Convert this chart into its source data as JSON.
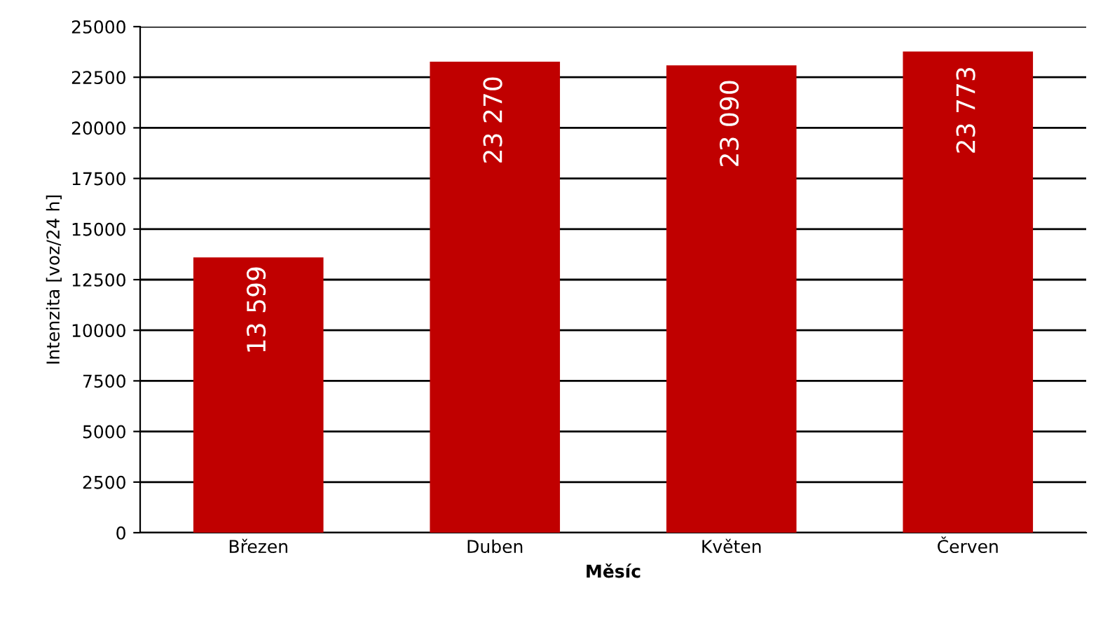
{
  "chart_data": {
    "type": "bar",
    "xlabel": "Měsíc",
    "ylabel": "Intenzita [voz/24 h]",
    "categories": [
      "Březen",
      "Duben",
      "Květen",
      "Červen"
    ],
    "values": [
      13599,
      23270,
      23090,
      23773
    ],
    "value_labels": [
      "13 599",
      "23 270",
      "23 090",
      "23 773"
    ],
    "color": "#c00000",
    "ylim": [
      0,
      25000
    ],
    "yticks": [
      0,
      2500,
      5000,
      7500,
      10000,
      12500,
      15000,
      17500,
      20000,
      22500,
      25000
    ],
    "grid": "y",
    "legend": false
  }
}
